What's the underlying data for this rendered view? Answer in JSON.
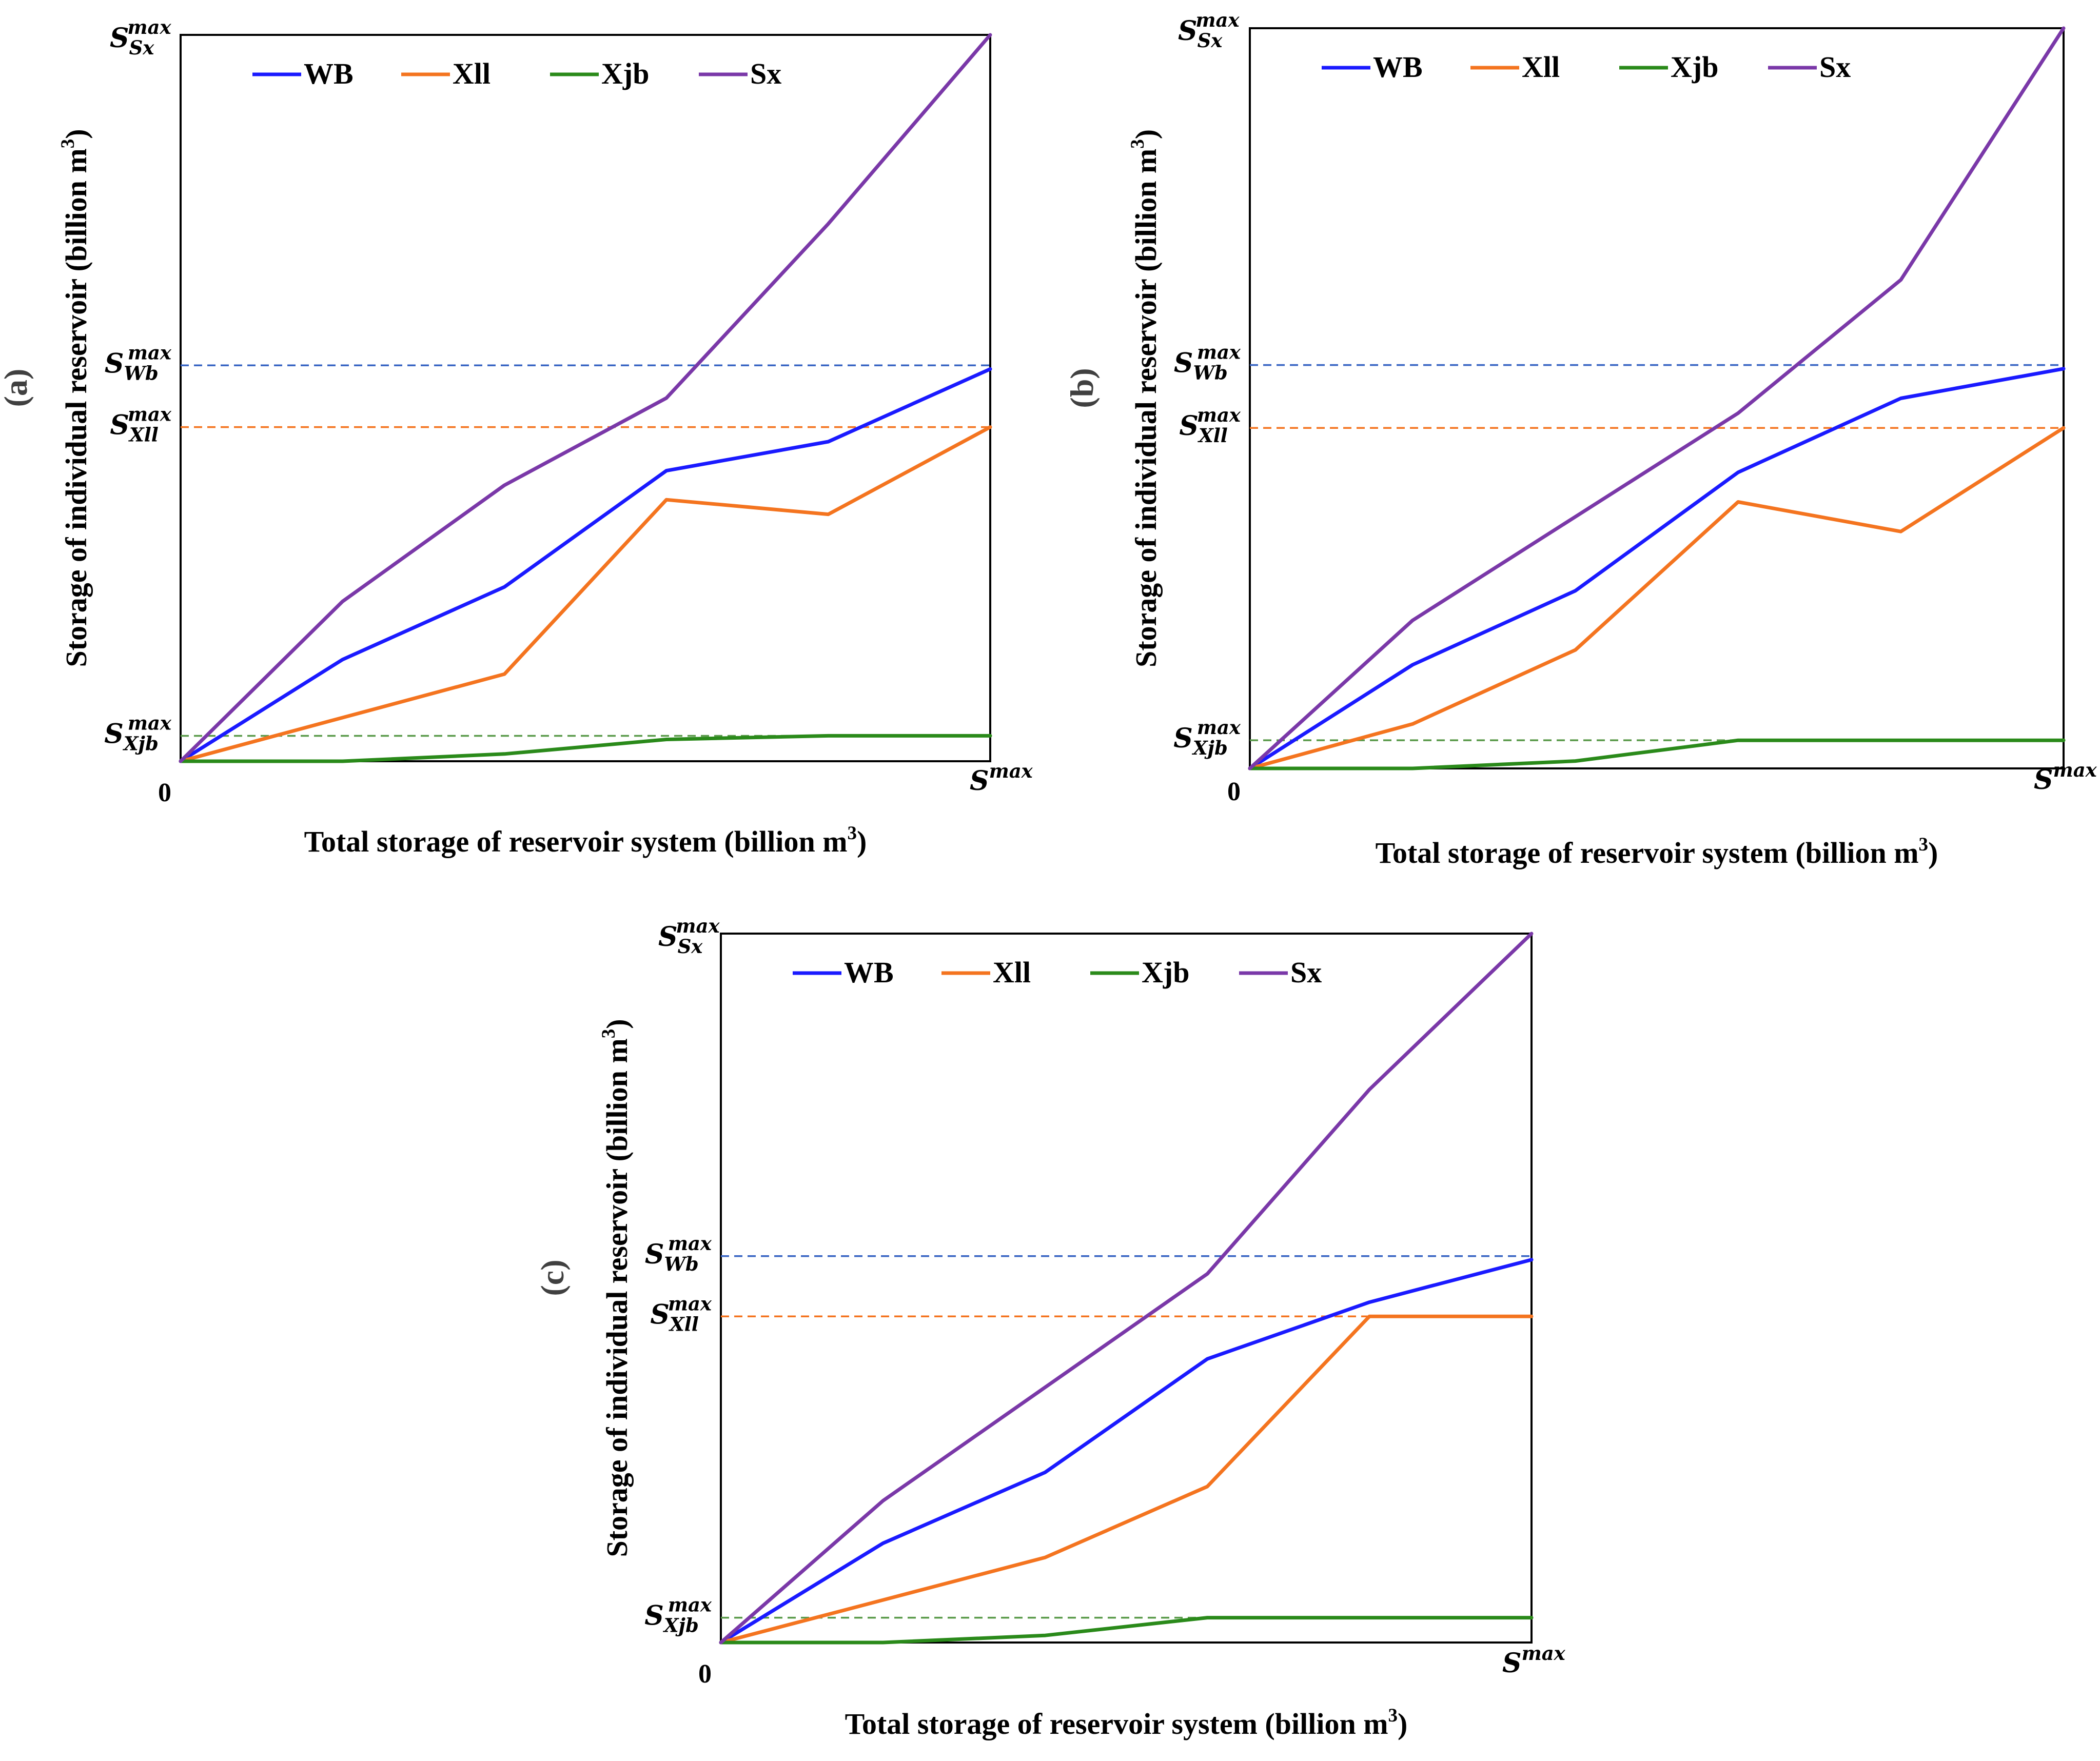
{
  "chart_data": [
    {
      "type": "line",
      "panel_label": "(a)",
      "xlabel": "Total storage of reservoir system (billion m",
      "xlabel_sup": "3",
      "xlabel_tail": ")",
      "ylabel": "Storage of individual  reservoir (billion m",
      "ylabel_sup": "3",
      "ylabel_tail": ")",
      "x_tick_start": "0",
      "x_tick_end": {
        "base": "S",
        "sup": "max"
      },
      "xlim": [
        0,
        1
      ],
      "ylim": [
        0,
        1
      ],
      "x": [
        0,
        0.2,
        0.4,
        0.6,
        0.8,
        1.0
      ],
      "series": [
        {
          "name": "WB",
          "color": "#1a1aff",
          "values": [
            0,
            0.14,
            0.24,
            0.4,
            0.44,
            0.54
          ]
        },
        {
          "name": "Xll",
          "color": "#f4741f",
          "values": [
            0,
            0.06,
            0.12,
            0.36,
            0.34,
            0.46
          ]
        },
        {
          "name": "Xjb",
          "color": "#2a8a1a",
          "values": [
            0,
            0,
            0.01,
            0.03,
            0.035,
            0.035
          ]
        },
        {
          "name": "Sx",
          "color": "#7a38a8",
          "values": [
            0,
            0.22,
            0.38,
            0.5,
            0.74,
            1.0
          ]
        }
      ],
      "reference_lines": [
        {
          "label_base": "S",
          "label_sub": "Wb",
          "label_sup": "max",
          "value": 0.545,
          "color": "#3a66c4"
        },
        {
          "label_base": "S",
          "label_sub": "Xll",
          "label_sup": "max",
          "value": 0.46,
          "color": "#f4741f"
        },
        {
          "label_base": "S",
          "label_sub": "Xjb",
          "label_sup": "max",
          "value": 0.035,
          "color": "#5a9a4a"
        }
      ],
      "ymax_label": {
        "base": "S",
        "sub": "Sx",
        "sup": "max"
      },
      "legend_position": "top"
    },
    {
      "type": "line",
      "panel_label": "(b)",
      "xlabel": "Total storage of reservoir system (billion m",
      "xlabel_sup": "3",
      "xlabel_tail": ")",
      "ylabel": "Storage of individual  reservoir (billion m",
      "ylabel_sup": "3",
      "ylabel_tail": ")",
      "x_tick_start": "0",
      "x_tick_end": {
        "base": "S",
        "sup": "max"
      },
      "xlim": [
        0,
        1
      ],
      "ylim": [
        0,
        1
      ],
      "x": [
        0,
        0.2,
        0.4,
        0.6,
        0.8,
        1.0
      ],
      "series": [
        {
          "name": "WB",
          "color": "#1a1aff",
          "values": [
            0,
            0.14,
            0.24,
            0.4,
            0.5,
            0.54
          ]
        },
        {
          "name": "Xll",
          "color": "#f4741f",
          "values": [
            0,
            0.06,
            0.16,
            0.36,
            0.32,
            0.46
          ]
        },
        {
          "name": "Xjb",
          "color": "#2a8a1a",
          "values": [
            0,
            0,
            0.01,
            0.038,
            0.038,
            0.038
          ]
        },
        {
          "name": "Sx",
          "color": "#7a38a8",
          "values": [
            0,
            0.2,
            0.34,
            0.48,
            0.66,
            1.0
          ]
        }
      ],
      "reference_lines": [
        {
          "label_base": "S",
          "label_sub": "Wb",
          "label_sup": "max",
          "value": 0.545,
          "color": "#3a66c4"
        },
        {
          "label_base": "S",
          "label_sub": "Xll",
          "label_sup": "max",
          "value": 0.46,
          "color": "#f4741f"
        },
        {
          "label_base": "S",
          "label_sub": "Xjb",
          "label_sup": "max",
          "value": 0.038,
          "color": "#5a9a4a"
        }
      ],
      "ymax_label": {
        "base": "S",
        "sub": "Sx",
        "sup": "max"
      },
      "legend_position": "top"
    },
    {
      "type": "line",
      "panel_label": "(c)",
      "xlabel": "Total storage of reservoir system (billion m",
      "xlabel_sup": "3",
      "xlabel_tail": ")",
      "ylabel": "Storage of individual  reservoir (billion m",
      "ylabel_sup": "3",
      "ylabel_tail": ")",
      "x_tick_start": "0",
      "x_tick_end": {
        "base": "S",
        "sup": "max"
      },
      "xlim": [
        0,
        1
      ],
      "ylim": [
        0,
        1
      ],
      "x": [
        0,
        0.2,
        0.4,
        0.6,
        0.8,
        1.0
      ],
      "series": [
        {
          "name": "WB",
          "color": "#1a1aff",
          "values": [
            0,
            0.14,
            0.24,
            0.4,
            0.48,
            0.54
          ]
        },
        {
          "name": "Xll",
          "color": "#f4741f",
          "values": [
            0,
            0.06,
            0.12,
            0.22,
            0.46,
            0.46
          ]
        },
        {
          "name": "Xjb",
          "color": "#2a8a1a",
          "values": [
            0,
            0,
            0.01,
            0.035,
            0.035,
            0.035
          ]
        },
        {
          "name": "Sx",
          "color": "#7a38a8",
          "values": [
            0,
            0.2,
            0.36,
            0.52,
            0.78,
            1.0
          ]
        }
      ],
      "reference_lines": [
        {
          "label_base": "S",
          "label_sub": "Wb",
          "label_sup": "max",
          "value": 0.545,
          "color": "#3a66c4"
        },
        {
          "label_base": "S",
          "label_sub": "Xll",
          "label_sup": "max",
          "value": 0.46,
          "color": "#f4741f"
        },
        {
          "label_base": "S",
          "label_sub": "Xjb",
          "label_sup": "max",
          "value": 0.035,
          "color": "#5a9a4a"
        }
      ],
      "ymax_label": {
        "base": "S",
        "sub": "Sx",
        "sup": "max"
      },
      "legend_position": "top"
    }
  ]
}
